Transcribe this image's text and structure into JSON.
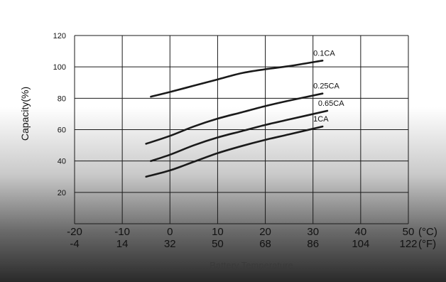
{
  "chart_data": {
    "type": "line",
    "ylabel": "Capacity(%)",
    "xlabel": "Battery Temperature",
    "ylim": [
      0,
      120
    ],
    "yticks": [
      20,
      40,
      60,
      80,
      100,
      120
    ],
    "xlim": [
      -20,
      50
    ],
    "xticks": [
      {
        "c": -20,
        "c_label": "-20",
        "f_label": "-4"
      },
      {
        "c": -10,
        "c_label": "-10",
        "f_label": "14"
      },
      {
        "c": 0,
        "c_label": "0",
        "f_label": "32"
      },
      {
        "c": 10,
        "c_label": "10",
        "f_label": "50"
      },
      {
        "c": 20,
        "c_label": "20",
        "f_label": "68"
      },
      {
        "c": 30,
        "c_label": "30",
        "f_label": "86"
      },
      {
        "c": 40,
        "c_label": "40",
        "f_label": "104"
      },
      {
        "c": 50,
        "c_label": "50",
        "f_label": "122"
      }
    ],
    "unit_c": "(°C)",
    "unit_f": "(°F)",
    "grid": true,
    "series": [
      {
        "name": "0.1CA",
        "x": [
          -4,
          0,
          5,
          10,
          15,
          20,
          25,
          32
        ],
        "y": [
          81,
          84,
          88,
          92,
          96,
          98.5,
          100.5,
          104
        ]
      },
      {
        "name": "0.25CA",
        "x": [
          -5,
          0,
          5,
          10,
          15,
          20,
          25,
          32
        ],
        "y": [
          51,
          56,
          62,
          67,
          71,
          75,
          78.5,
          83
        ]
      },
      {
        "name": "0.65CA",
        "x": [
          -4,
          0,
          5,
          10,
          15,
          20,
          25,
          33
        ],
        "y": [
          40,
          44,
          50,
          55,
          59,
          63,
          66.5,
          72
        ]
      },
      {
        "name": "1CA",
        "x": [
          -5,
          0,
          5,
          10,
          15,
          20,
          25,
          32
        ],
        "y": [
          30,
          34,
          39.5,
          45,
          49.5,
          53.5,
          57,
          62
        ]
      }
    ]
  }
}
